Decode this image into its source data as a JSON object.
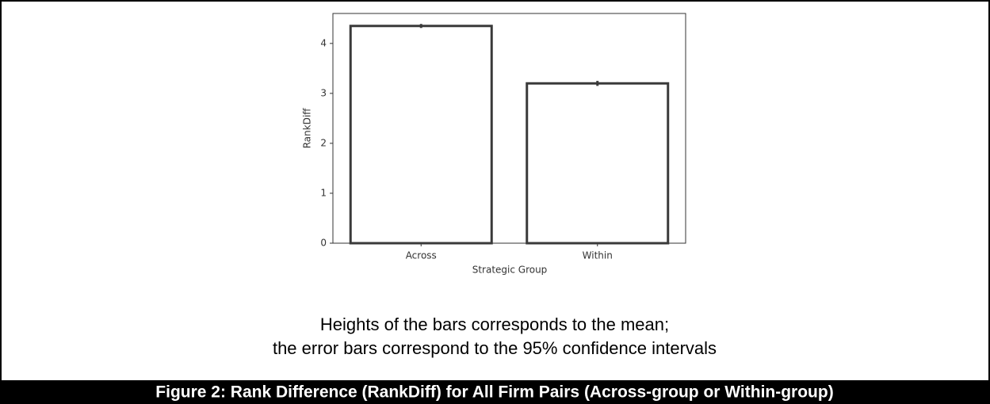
{
  "chart_data": {
    "type": "bar",
    "xlabel": "Strategic Group",
    "ylabel": "RankDiff",
    "categories": [
      "Across",
      "Within"
    ],
    "values": [
      4.35,
      3.2
    ],
    "errors": [
      0.04,
      0.05
    ],
    "color": "#ffffff",
    "edgecolor": "#3a3a3a",
    "ylim": [
      0,
      4.6
    ],
    "yticks": [
      0,
      1,
      2,
      3,
      4
    ],
    "grid": false
  },
  "note": [
    "Heights of the bars corresponds to the mean;",
    "the error bars correspond to the 95% confidence intervals"
  ],
  "caption": "Figure 2: Rank Difference (RankDiff) for All Firm Pairs (Across-group or Within-group)"
}
